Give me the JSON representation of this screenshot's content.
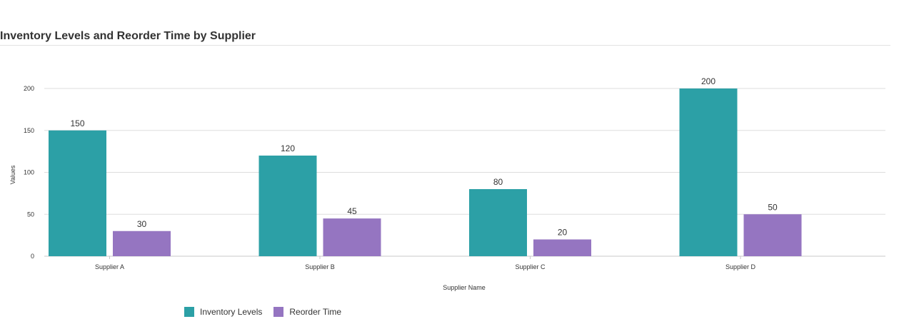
{
  "chart_data": {
    "type": "bar",
    "title": "Inventory Levels and Reorder Time by Supplier",
    "xlabel": "Supplier Name",
    "ylabel": "Values",
    "categories": [
      "Supplier A",
      "Supplier B",
      "Supplier C",
      "Supplier D"
    ],
    "series": [
      {
        "name": "Inventory Levels",
        "color": "#2ca0a6",
        "values": [
          150,
          120,
          80,
          200
        ]
      },
      {
        "name": "Reorder Time",
        "color": "#9575c1",
        "values": [
          30,
          45,
          20,
          50
        ]
      }
    ],
    "yticks": [
      0,
      50,
      100,
      150,
      200
    ],
    "ylim": [
      0,
      200
    ],
    "grid": true,
    "legend": "bottom-left",
    "data_labels": true
  }
}
